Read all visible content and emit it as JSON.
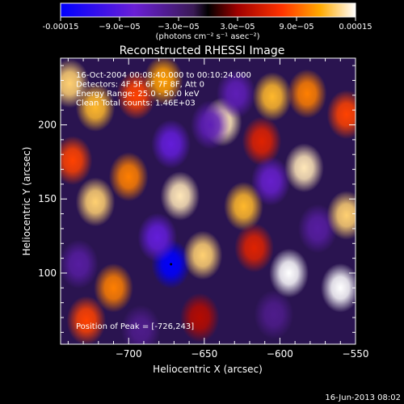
{
  "chart_data": {
    "type": "heatmap",
    "title": "Reconstructed RHESSI Image",
    "xlabel": "Heliocentric X (arcsec)",
    "ylabel": "Heliocentric Y (arcsec)",
    "xlim": [
      -745,
      -550
    ],
    "ylim": [
      52,
      245
    ],
    "x_ticks": [
      -700,
      -650,
      -600,
      -550
    ],
    "x_tick_labels": [
      "−700",
      "−650",
      "−600",
      "−550"
    ],
    "y_ticks": [
      100,
      150,
      200
    ],
    "y_tick_labels": [
      "100",
      "150",
      "200"
    ],
    "colorbar": {
      "range": [
        -0.00015,
        0.00015
      ],
      "tick_labels": [
        "-0.00015",
        "−9.0e−05",
        "−3.0e−05",
        "3.0e−05",
        "9.0e−05",
        "0.00015"
      ],
      "units_label": "(photons cm⁻² s⁻¹ asec⁻²)"
    },
    "annotations": [
      "16-Oct-2004 00:08:40.000 to 00:10:24.000",
      "Detectors: 4F 5F 6F 7F 8F, Att 0",
      "Energy Range: 25.0 - 50.0 keV",
      "Clean     Total counts: 1.46E+03"
    ],
    "peak_label": "Position of Peak = [-726,243]",
    "blobs": [
      {
        "x": -739,
        "y": 228,
        "v": 0.00013
      },
      {
        "x": -722,
        "y": 212,
        "v": 0.00012
      },
      {
        "x": -737,
        "y": 176,
        "v": 8e-05
      },
      {
        "x": -722,
        "y": 148,
        "v": 0.00013
      },
      {
        "x": -733,
        "y": 106,
        "v": -5e-05
      },
      {
        "x": -728,
        "y": 68,
        "v": 8e-05
      },
      {
        "x": -710,
        "y": 90,
        "v": 0.0001
      },
      {
        "x": -700,
        "y": 165,
        "v": 0.0001
      },
      {
        "x": -695,
        "y": 220,
        "v": 8e-05
      },
      {
        "x": -677,
        "y": 230,
        "v": 0.00011
      },
      {
        "x": -672,
        "y": 187,
        "v": -8e-05
      },
      {
        "x": -672,
        "y": 106,
        "v": -0.00015
      },
      {
        "x": -681,
        "y": 124,
        "v": -8e-05
      },
      {
        "x": -666,
        "y": 152,
        "v": 0.00014
      },
      {
        "x": -651,
        "y": 112,
        "v": 0.00013
      },
      {
        "x": -653,
        "y": 70,
        "v": 4e-05
      },
      {
        "x": -638,
        "y": 202,
        "v": 0.00014
      },
      {
        "x": -629,
        "y": 221,
        "v": -6e-05
      },
      {
        "x": -624,
        "y": 145,
        "v": 0.00012
      },
      {
        "x": -612,
        "y": 189,
        "v": 6e-05
      },
      {
        "x": -605,
        "y": 219,
        "v": 0.00012
      },
      {
        "x": -606,
        "y": 162,
        "v": -7e-05
      },
      {
        "x": -617,
        "y": 117,
        "v": 6e-05
      },
      {
        "x": -604,
        "y": 72,
        "v": -4e-05
      },
      {
        "x": -594,
        "y": 100,
        "v": 0.00015
      },
      {
        "x": -584,
        "y": 171,
        "v": 0.00014
      },
      {
        "x": -582,
        "y": 221,
        "v": 0.0001
      },
      {
        "x": -575,
        "y": 130,
        "v": -5e-05
      },
      {
        "x": -560,
        "y": 90,
        "v": 0.00015
      },
      {
        "x": -556,
        "y": 139,
        "v": 0.00013
      },
      {
        "x": -556,
        "y": 207,
        "v": 8e-05
      },
      {
        "x": -646,
        "y": 200,
        "v": -6e-05
      },
      {
        "x": -692,
        "y": 62,
        "v": -4e-05
      }
    ],
    "grid": false
  },
  "footer": {
    "timestamp": "16-Jun-2013 08:02"
  },
  "colors": {
    "bg": "#000000",
    "axis": "#ffffff"
  }
}
